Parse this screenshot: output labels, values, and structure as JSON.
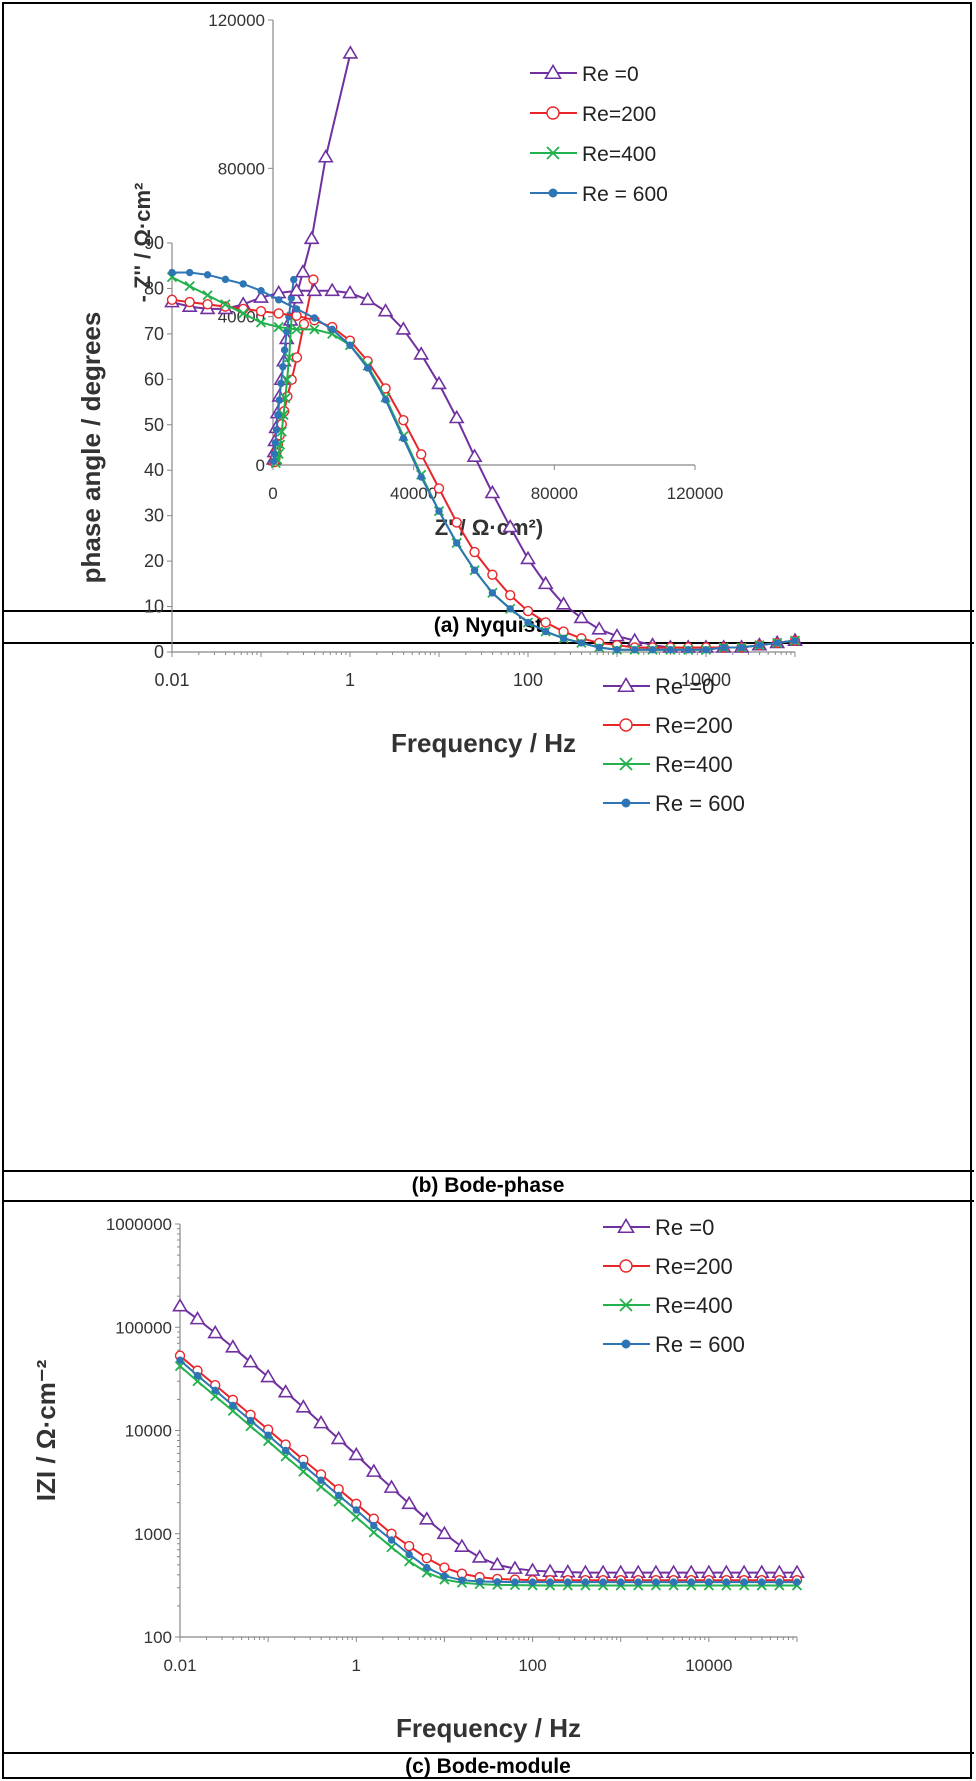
{
  "captions": {
    "a": "(a) Nyquist",
    "b": "(b) Bode-phase",
    "c": "(c) Bode-module"
  },
  "series_styles": [
    {
      "name": "Re =0",
      "color": "#7030A0",
      "marker": "triangle"
    },
    {
      "name": "Re=200",
      "color": "#E8262A",
      "marker": "circle"
    },
    {
      "name": "Re=400",
      "color": "#22B14C",
      "marker": "x"
    },
    {
      "name": "Re = 600",
      "color": "#2E75B6",
      "marker": "dot"
    }
  ],
  "chart_data": [
    {
      "id": "nyquist",
      "type": "scatter",
      "xlabel": "Z' / Ω·cm²)",
      "ylabel": "- Z'' / Ω·cm²",
      "xlim": [
        0,
        120000
      ],
      "ylim": [
        0,
        120000
      ],
      "xticks": [
        "0",
        "40000",
        "80000",
        "120000"
      ],
      "yticks": [
        "0",
        "40000",
        "80000",
        "120000"
      ],
      "legend_position": "top-right",
      "series": [
        {
          "name": "Re =0",
          "x": [
            200,
            400,
            600,
            900,
            1300,
            1800,
            2400,
            3100,
            3900,
            5000,
            6500,
            8500,
            11000,
            15000,
            22000
          ],
          "y": [
            1500,
            3500,
            6500,
            10000,
            14000,
            18500,
            23000,
            28000,
            34000,
            39000,
            45000,
            52000,
            61000,
            83000,
            111000
          ]
        },
        {
          "name": "Re=200",
          "x": [
            400,
            700,
            1000,
            1400,
            1900,
            2500,
            3200,
            4100,
            5300,
            6800,
            8800,
            11500
          ],
          "y": [
            800,
            2000,
            3500,
            5500,
            8000,
            11000,
            14500,
            18500,
            23000,
            29000,
            38000,
            50000
          ]
        },
        {
          "name": "Re=400",
          "x": [
            800,
            1200,
            1600,
            2000,
            2500,
            3000,
            3500,
            4000,
            4600,
            5300
          ],
          "y": [
            500,
            1500,
            3000,
            5500,
            9000,
            13500,
            18000,
            23000,
            29000,
            40000
          ]
        },
        {
          "name": "Re = 600",
          "x": [
            200,
            400,
            700,
            1000,
            1400,
            1800,
            2300,
            2800,
            3300,
            3900,
            4500,
            5200,
            5900
          ],
          "y": [
            1000,
            3000,
            6000,
            9500,
            13500,
            17500,
            22000,
            26500,
            31000,
            36000,
            40000,
            45000,
            50000
          ]
        }
      ]
    },
    {
      "id": "bode-phase",
      "type": "line",
      "xscale": "log",
      "xlabel": "Frequency / Hz",
      "ylabel": "phase angle / degrees",
      "xlim": [
        0.01,
        100000
      ],
      "ylim": [
        0,
        90
      ],
      "xticks": [
        "0.01",
        "1",
        "100",
        "10000"
      ],
      "yticks": [
        "0",
        "10",
        "20",
        "30",
        "40",
        "50",
        "60",
        "70",
        "80",
        "90"
      ],
      "legend_position": "top-right",
      "series": [
        {
          "name": "Re =0",
          "x": [
            0.01,
            0.0158,
            0.0251,
            0.0398,
            0.0631,
            0.1,
            0.158,
            0.251,
            0.398,
            0.631,
            1,
            1.58,
            2.51,
            3.98,
            6.31,
            10,
            15.8,
            25.1,
            39.8,
            63.1,
            100,
            158,
            251,
            398,
            631,
            1000,
            1580,
            2510,
            3980,
            6310,
            10000,
            15800,
            25100,
            39800,
            63100,
            100000
          ],
          "y": [
            77,
            76,
            75.5,
            75.5,
            76.5,
            78,
            79,
            79.5,
            79.5,
            79.5,
            79,
            77.5,
            75,
            71,
            65.5,
            59,
            51.5,
            43,
            35,
            27.5,
            20.5,
            15,
            10.5,
            7.5,
            5,
            3.5,
            2.5,
            1.5,
            1,
            1,
            1,
            1,
            1,
            1.5,
            2,
            2.5
          ]
        },
        {
          "name": "Re=200",
          "x": [
            0.01,
            0.0158,
            0.0251,
            0.0398,
            0.0631,
            0.1,
            0.158,
            0.251,
            0.398,
            0.631,
            1,
            1.58,
            2.51,
            3.98,
            6.31,
            10,
            15.8,
            25.1,
            39.8,
            63.1,
            100,
            158,
            251,
            398,
            631,
            1000,
            1580,
            2510,
            3980,
            6310,
            10000,
            15800,
            25100,
            39800,
            63100,
            100000
          ],
          "y": [
            77.5,
            77,
            76.5,
            76,
            75.5,
            75,
            74.5,
            74,
            73,
            71.5,
            68.5,
            64,
            58,
            51,
            43.5,
            36,
            28.5,
            22,
            17,
            12.5,
            9,
            6.5,
            4.5,
            3,
            2,
            1.5,
            1,
            1,
            1,
            1,
            1,
            1,
            1,
            1.5,
            2,
            2.5
          ]
        },
        {
          "name": "Re=400",
          "x": [
            0.01,
            0.0158,
            0.0251,
            0.0398,
            0.0631,
            0.1,
            0.158,
            0.251,
            0.398,
            0.631,
            1,
            1.58,
            2.51,
            3.98,
            6.31,
            10,
            15.8,
            25.1,
            39.8,
            63.1,
            100,
            158,
            251,
            398,
            631,
            1000,
            1580,
            2510,
            3980,
            6310,
            10000,
            15800,
            25100,
            39800,
            63100,
            100000
          ],
          "y": [
            82.5,
            80.5,
            78.5,
            76.5,
            74.5,
            72.5,
            71.5,
            71,
            71,
            70,
            67.5,
            63,
            56,
            47.5,
            39,
            31,
            24,
            18,
            13,
            9.5,
            6.5,
            4.5,
            3,
            2,
            1,
            0.5,
            0.5,
            0.5,
            0.5,
            0.5,
            0.5,
            1,
            1,
            1.5,
            2,
            2.5
          ]
        },
        {
          "name": "Re = 600",
          "x": [
            0.01,
            0.0158,
            0.0251,
            0.0398,
            0.0631,
            0.1,
            0.158,
            0.251,
            0.398,
            0.631,
            1,
            1.58,
            2.51,
            3.98,
            6.31,
            10,
            15.8,
            25.1,
            39.8,
            63.1,
            100,
            158,
            251,
            398,
            631,
            1000,
            1580,
            2510,
            3980,
            6310,
            10000,
            15800,
            25100,
            39800,
            63100,
            100000
          ],
          "y": [
            83.5,
            83.5,
            83,
            82,
            81,
            79.5,
            77.5,
            75.5,
            73.5,
            71,
            67.5,
            62.5,
            55.5,
            47,
            38.5,
            31,
            24,
            18,
            13,
            9.5,
            6.5,
            4.5,
            3,
            2,
            1,
            0.5,
            0.5,
            0.5,
            0.5,
            0.5,
            0.5,
            1,
            1,
            1.5,
            2,
            2.5
          ]
        }
      ]
    },
    {
      "id": "bode-module",
      "type": "line",
      "xscale": "log",
      "yscale": "log",
      "xlabel": "Frequency / Hz",
      "ylabel": "IZI / Ω·cm⁻²",
      "xlim": [
        0.01,
        100000
      ],
      "ylim": [
        100,
        1000000
      ],
      "xticks": [
        "0.01",
        "1",
        "100",
        "10000"
      ],
      "yticks": [
        "100",
        "1000",
        "10000",
        "100000",
        "1000000"
      ],
      "legend_position": "top-right",
      "series": [
        {
          "name": "Re =0",
          "x": [
            0.01,
            0.0158,
            0.0251,
            0.0398,
            0.0631,
            0.1,
            0.158,
            0.251,
            0.398,
            0.631,
            1,
            1.58,
            2.51,
            3.98,
            6.31,
            10,
            15.8,
            25.1,
            39.8,
            63.1,
            100,
            158,
            251,
            398,
            631,
            1000,
            1580,
            2510,
            3980,
            6310,
            10000,
            15800,
            25100,
            39800,
            63100,
            100000
          ],
          "y": [
            160000,
            120000,
            88000,
            64000,
            46000,
            33000,
            23500,
            16800,
            11800,
            8300,
            5800,
            4000,
            2800,
            1950,
            1380,
            1000,
            750,
            590,
            500,
            460,
            440,
            430,
            425,
            420,
            420,
            420,
            420,
            420,
            420,
            420,
            420,
            420,
            420,
            420,
            420,
            420
          ]
        },
        {
          "name": "Re=200",
          "x": [
            0.01,
            0.0158,
            0.0251,
            0.0398,
            0.0631,
            0.1,
            0.158,
            0.251,
            0.398,
            0.631,
            1,
            1.58,
            2.51,
            3.98,
            6.31,
            10,
            15.8,
            25.1,
            39.8,
            63.1,
            100,
            158,
            251,
            398,
            631,
            1000,
            1580,
            2510,
            3980,
            6310,
            10000,
            15800,
            25100,
            39800,
            63100,
            100000
          ],
          "y": [
            53000,
            38000,
            27500,
            19800,
            14200,
            10200,
            7300,
            5200,
            3750,
            2700,
            1950,
            1400,
            1000,
            760,
            580,
            470,
            410,
            380,
            365,
            360,
            355,
            355,
            355,
            355,
            355,
            355,
            355,
            355,
            355,
            355,
            355,
            355,
            355,
            355,
            355,
            355
          ]
        },
        {
          "name": "Re=400",
          "x": [
            0.01,
            0.0158,
            0.0251,
            0.0398,
            0.0631,
            0.1,
            0.158,
            0.251,
            0.398,
            0.631,
            1,
            1.58,
            2.51,
            3.98,
            6.31,
            10,
            15.8,
            25.1,
            39.8,
            63.1,
            100,
            158,
            251,
            398,
            631,
            1000,
            1580,
            2510,
            3980,
            6310,
            10000,
            15800,
            25100,
            39800,
            63100,
            100000
          ],
          "y": [
            42000,
            30000,
            21500,
            15500,
            11000,
            7900,
            5600,
            4000,
            2850,
            2050,
            1450,
            1030,
            740,
            540,
            420,
            360,
            335,
            325,
            320,
            318,
            316,
            315,
            315,
            315,
            315,
            315,
            315,
            315,
            315,
            315,
            315,
            315,
            315,
            315,
            315,
            315
          ]
        },
        {
          "name": "Re = 600",
          "x": [
            0.01,
            0.0158,
            0.0251,
            0.0398,
            0.0631,
            0.1,
            0.158,
            0.251,
            0.398,
            0.631,
            1,
            1.58,
            2.51,
            3.98,
            6.31,
            10,
            15.8,
            25.1,
            39.8,
            63.1,
            100,
            158,
            251,
            398,
            631,
            1000,
            1580,
            2510,
            3980,
            6310,
            10000,
            15800,
            25100,
            39800,
            63100,
            100000
          ],
          "y": [
            48000,
            34000,
            24500,
            17500,
            12500,
            9000,
            6400,
            4600,
            3300,
            2350,
            1700,
            1200,
            870,
            630,
            470,
            390,
            355,
            345,
            342,
            340,
            340,
            340,
            340,
            340,
            340,
            340,
            340,
            340,
            340,
            340,
            340,
            340,
            340,
            340,
            340,
            340
          ]
        }
      ]
    }
  ]
}
